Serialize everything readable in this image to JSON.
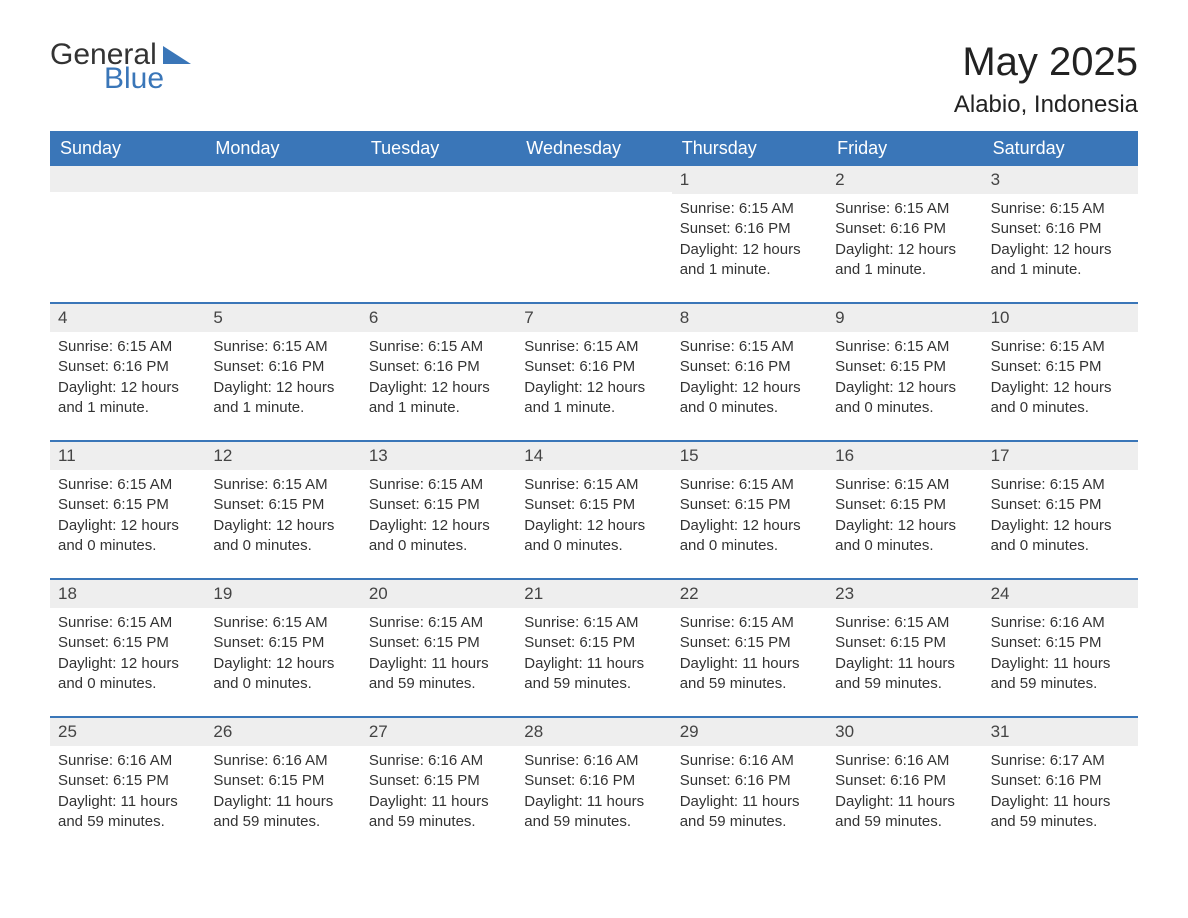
{
  "brand": {
    "word1": "General",
    "word2": "Blue",
    "accent_color": "#3a76b8"
  },
  "title": {
    "month": "May 2025",
    "location": "Alabio, Indonesia"
  },
  "styling": {
    "header_bg": "#3a76b8",
    "header_text": "#ffffff",
    "daynum_bg": "#eeeeee",
    "row_border": "#3a76b8",
    "body_text": "#333333",
    "title_fontsize": 40,
    "location_fontsize": 24,
    "weekday_fontsize": 18,
    "daynum_fontsize": 17,
    "body_fontsize": 15,
    "columns": 7
  },
  "weekdays": [
    "Sunday",
    "Monday",
    "Tuesday",
    "Wednesday",
    "Thursday",
    "Friday",
    "Saturday"
  ],
  "weeks": [
    [
      {
        "empty": true
      },
      {
        "empty": true
      },
      {
        "empty": true
      },
      {
        "empty": true
      },
      {
        "n": "1",
        "sunrise": "Sunrise: 6:15 AM",
        "sunset": "Sunset: 6:16 PM",
        "daylight": "Daylight: 12 hours and 1 minute."
      },
      {
        "n": "2",
        "sunrise": "Sunrise: 6:15 AM",
        "sunset": "Sunset: 6:16 PM",
        "daylight": "Daylight: 12 hours and 1 minute."
      },
      {
        "n": "3",
        "sunrise": "Sunrise: 6:15 AM",
        "sunset": "Sunset: 6:16 PM",
        "daylight": "Daylight: 12 hours and 1 minute."
      }
    ],
    [
      {
        "n": "4",
        "sunrise": "Sunrise: 6:15 AM",
        "sunset": "Sunset: 6:16 PM",
        "daylight": "Daylight: 12 hours and 1 minute."
      },
      {
        "n": "5",
        "sunrise": "Sunrise: 6:15 AM",
        "sunset": "Sunset: 6:16 PM",
        "daylight": "Daylight: 12 hours and 1 minute."
      },
      {
        "n": "6",
        "sunrise": "Sunrise: 6:15 AM",
        "sunset": "Sunset: 6:16 PM",
        "daylight": "Daylight: 12 hours and 1 minute."
      },
      {
        "n": "7",
        "sunrise": "Sunrise: 6:15 AM",
        "sunset": "Sunset: 6:16 PM",
        "daylight": "Daylight: 12 hours and 1 minute."
      },
      {
        "n": "8",
        "sunrise": "Sunrise: 6:15 AM",
        "sunset": "Sunset: 6:16 PM",
        "daylight": "Daylight: 12 hours and 0 minutes."
      },
      {
        "n": "9",
        "sunrise": "Sunrise: 6:15 AM",
        "sunset": "Sunset: 6:15 PM",
        "daylight": "Daylight: 12 hours and 0 minutes."
      },
      {
        "n": "10",
        "sunrise": "Sunrise: 6:15 AM",
        "sunset": "Sunset: 6:15 PM",
        "daylight": "Daylight: 12 hours and 0 minutes."
      }
    ],
    [
      {
        "n": "11",
        "sunrise": "Sunrise: 6:15 AM",
        "sunset": "Sunset: 6:15 PM",
        "daylight": "Daylight: 12 hours and 0 minutes."
      },
      {
        "n": "12",
        "sunrise": "Sunrise: 6:15 AM",
        "sunset": "Sunset: 6:15 PM",
        "daylight": "Daylight: 12 hours and 0 minutes."
      },
      {
        "n": "13",
        "sunrise": "Sunrise: 6:15 AM",
        "sunset": "Sunset: 6:15 PM",
        "daylight": "Daylight: 12 hours and 0 minutes."
      },
      {
        "n": "14",
        "sunrise": "Sunrise: 6:15 AM",
        "sunset": "Sunset: 6:15 PM",
        "daylight": "Daylight: 12 hours and 0 minutes."
      },
      {
        "n": "15",
        "sunrise": "Sunrise: 6:15 AM",
        "sunset": "Sunset: 6:15 PM",
        "daylight": "Daylight: 12 hours and 0 minutes."
      },
      {
        "n": "16",
        "sunrise": "Sunrise: 6:15 AM",
        "sunset": "Sunset: 6:15 PM",
        "daylight": "Daylight: 12 hours and 0 minutes."
      },
      {
        "n": "17",
        "sunrise": "Sunrise: 6:15 AM",
        "sunset": "Sunset: 6:15 PM",
        "daylight": "Daylight: 12 hours and 0 minutes."
      }
    ],
    [
      {
        "n": "18",
        "sunrise": "Sunrise: 6:15 AM",
        "sunset": "Sunset: 6:15 PM",
        "daylight": "Daylight: 12 hours and 0 minutes."
      },
      {
        "n": "19",
        "sunrise": "Sunrise: 6:15 AM",
        "sunset": "Sunset: 6:15 PM",
        "daylight": "Daylight: 12 hours and 0 minutes."
      },
      {
        "n": "20",
        "sunrise": "Sunrise: 6:15 AM",
        "sunset": "Sunset: 6:15 PM",
        "daylight": "Daylight: 11 hours and 59 minutes."
      },
      {
        "n": "21",
        "sunrise": "Sunrise: 6:15 AM",
        "sunset": "Sunset: 6:15 PM",
        "daylight": "Daylight: 11 hours and 59 minutes."
      },
      {
        "n": "22",
        "sunrise": "Sunrise: 6:15 AM",
        "sunset": "Sunset: 6:15 PM",
        "daylight": "Daylight: 11 hours and 59 minutes."
      },
      {
        "n": "23",
        "sunrise": "Sunrise: 6:15 AM",
        "sunset": "Sunset: 6:15 PM",
        "daylight": "Daylight: 11 hours and 59 minutes."
      },
      {
        "n": "24",
        "sunrise": "Sunrise: 6:16 AM",
        "sunset": "Sunset: 6:15 PM",
        "daylight": "Daylight: 11 hours and 59 minutes."
      }
    ],
    [
      {
        "n": "25",
        "sunrise": "Sunrise: 6:16 AM",
        "sunset": "Sunset: 6:15 PM",
        "daylight": "Daylight: 11 hours and 59 minutes."
      },
      {
        "n": "26",
        "sunrise": "Sunrise: 6:16 AM",
        "sunset": "Sunset: 6:15 PM",
        "daylight": "Daylight: 11 hours and 59 minutes."
      },
      {
        "n": "27",
        "sunrise": "Sunrise: 6:16 AM",
        "sunset": "Sunset: 6:15 PM",
        "daylight": "Daylight: 11 hours and 59 minutes."
      },
      {
        "n": "28",
        "sunrise": "Sunrise: 6:16 AM",
        "sunset": "Sunset: 6:16 PM",
        "daylight": "Daylight: 11 hours and 59 minutes."
      },
      {
        "n": "29",
        "sunrise": "Sunrise: 6:16 AM",
        "sunset": "Sunset: 6:16 PM",
        "daylight": "Daylight: 11 hours and 59 minutes."
      },
      {
        "n": "30",
        "sunrise": "Sunrise: 6:16 AM",
        "sunset": "Sunset: 6:16 PM",
        "daylight": "Daylight: 11 hours and 59 minutes."
      },
      {
        "n": "31",
        "sunrise": "Sunrise: 6:17 AM",
        "sunset": "Sunset: 6:16 PM",
        "daylight": "Daylight: 11 hours and 59 minutes."
      }
    ]
  ]
}
